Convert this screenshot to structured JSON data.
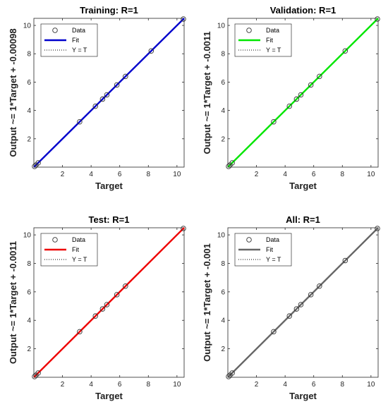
{
  "figure": {
    "colors": {
      "background": "#ffffff",
      "axes": "#262626",
      "marker": "#333333",
      "yt_line": "#000000"
    }
  },
  "chart_data": [
    {
      "type": "scatter",
      "title": "Training: R=1",
      "xlabel": "Target",
      "ylabel": "Output ~= 1*Target + -0.00098",
      "xlim": [
        0,
        10.5
      ],
      "ylim": [
        0,
        10.5
      ],
      "xticks": [
        2,
        4,
        6,
        8,
        10
      ],
      "yticks": [
        2,
        4,
        6,
        8,
        10
      ],
      "fit_color": "#0000cc",
      "fit": {
        "slope": 1,
        "intercept": -0.00098
      },
      "legend": {
        "placement": "top-left",
        "entries": [
          "Data",
          "Fit",
          "Y = T"
        ]
      },
      "points": [
        [
          0.05,
          0.05
        ],
        [
          0.15,
          0.15
        ],
        [
          0.3,
          0.3
        ],
        [
          3.2,
          3.2
        ],
        [
          4.3,
          4.3
        ],
        [
          4.8,
          4.8
        ],
        [
          5.1,
          5.1
        ],
        [
          5.8,
          5.8
        ],
        [
          6.4,
          6.4
        ],
        [
          8.2,
          8.2
        ],
        [
          10.45,
          10.45
        ]
      ]
    },
    {
      "type": "scatter",
      "title": "Validation: R=1",
      "xlabel": "Target",
      "ylabel": "Output ~= 1*Target + -0.0011",
      "xlim": [
        0,
        10.5
      ],
      "ylim": [
        0,
        10.5
      ],
      "xticks": [
        2,
        4,
        6,
        8,
        10
      ],
      "yticks": [
        2,
        4,
        6,
        8,
        10
      ],
      "fit_color": "#00e600",
      "fit": {
        "slope": 1,
        "intercept": -0.0011
      },
      "legend": {
        "placement": "top-left",
        "entries": [
          "Data",
          "Fit",
          "Y = T"
        ]
      },
      "points": [
        [
          0.05,
          0.05
        ],
        [
          0.15,
          0.15
        ],
        [
          0.3,
          0.3
        ],
        [
          3.2,
          3.2
        ],
        [
          4.3,
          4.3
        ],
        [
          4.8,
          4.8
        ],
        [
          5.1,
          5.1
        ],
        [
          5.8,
          5.8
        ],
        [
          6.4,
          6.4
        ],
        [
          8.2,
          8.2
        ],
        [
          10.45,
          10.45
        ]
      ]
    },
    {
      "type": "scatter",
      "title": "Test: R=1",
      "xlabel": "Target",
      "ylabel": "Output ~= 1*Target + -0.0011",
      "xlim": [
        0,
        10.5
      ],
      "ylim": [
        0,
        10.5
      ],
      "xticks": [
        2,
        4,
        6,
        8,
        10
      ],
      "yticks": [
        2,
        4,
        6,
        8,
        10
      ],
      "fit_color": "#ee0000",
      "fit": {
        "slope": 1,
        "intercept": -0.0011
      },
      "legend": {
        "placement": "top-left",
        "entries": [
          "Data",
          "Fit",
          "Y = T"
        ]
      },
      "points": [
        [
          0.05,
          0.05
        ],
        [
          0.15,
          0.15
        ],
        [
          0.3,
          0.3
        ],
        [
          3.2,
          3.2
        ],
        [
          4.3,
          4.3
        ],
        [
          4.8,
          4.8
        ],
        [
          5.1,
          5.1
        ],
        [
          5.8,
          5.8
        ],
        [
          6.4,
          6.4
        ],
        [
          10.45,
          10.45
        ]
      ]
    },
    {
      "type": "scatter",
      "title": "All: R=1",
      "xlabel": "Target",
      "ylabel": "Output ~= 1*Target + -0.001",
      "xlim": [
        0,
        10.5
      ],
      "ylim": [
        0,
        10.5
      ],
      "xticks": [
        2,
        4,
        6,
        8,
        10
      ],
      "yticks": [
        2,
        4,
        6,
        8,
        10
      ],
      "fit_color": "#666666",
      "fit": {
        "slope": 1,
        "intercept": -0.001
      },
      "legend": {
        "placement": "top-left",
        "entries": [
          "Data",
          "Fit",
          "Y = T"
        ]
      },
      "points": [
        [
          0.05,
          0.05
        ],
        [
          0.15,
          0.15
        ],
        [
          0.3,
          0.3
        ],
        [
          3.2,
          3.2
        ],
        [
          4.3,
          4.3
        ],
        [
          4.8,
          4.8
        ],
        [
          5.1,
          5.1
        ],
        [
          5.8,
          5.8
        ],
        [
          6.4,
          6.4
        ],
        [
          8.2,
          8.2
        ],
        [
          10.45,
          10.45
        ]
      ]
    }
  ]
}
